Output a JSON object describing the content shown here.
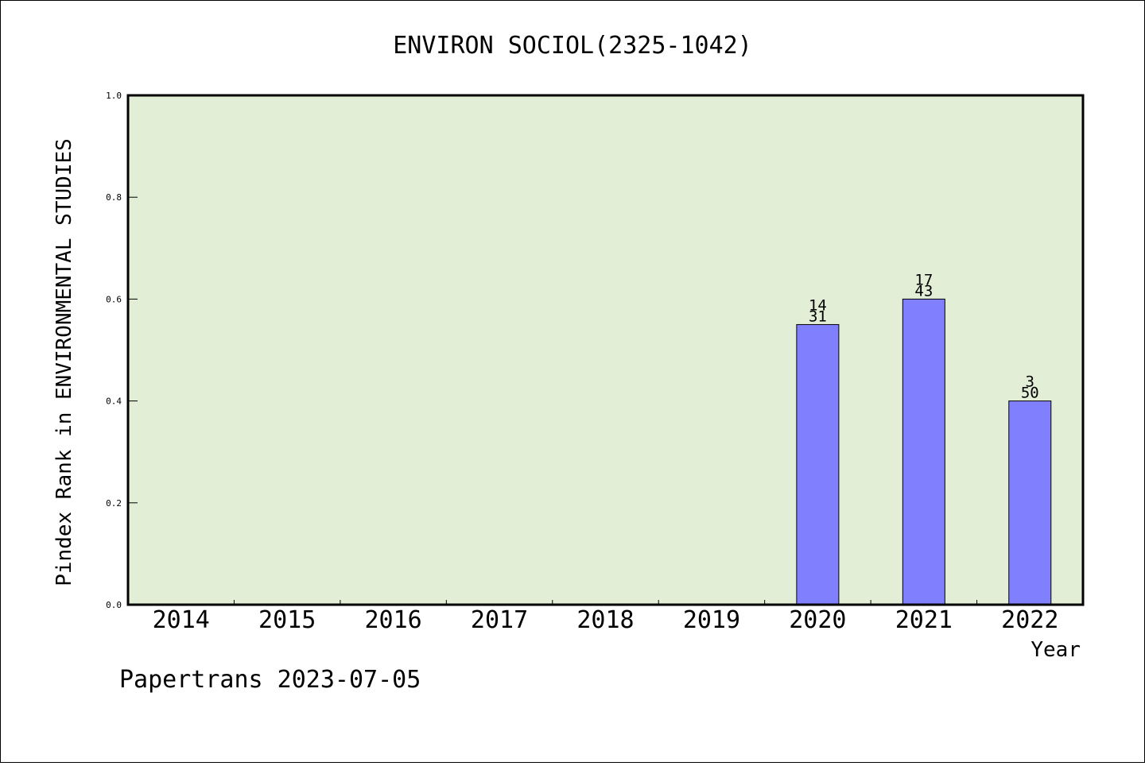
{
  "chart_data": {
    "type": "bar",
    "title": "ENVIRON SOCIOL(2325-1042)",
    "ylabel": "Pindex Rank in ENVIRONMENTAL STUDIES",
    "xlabel": "Year",
    "categories": [
      "2014",
      "2015",
      "2016",
      "2017",
      "2018",
      "2019",
      "2020",
      "2021",
      "2022"
    ],
    "values": [
      null,
      null,
      null,
      null,
      null,
      null,
      0.55,
      0.6,
      0.4
    ],
    "bar_labels": [
      null,
      null,
      null,
      null,
      null,
      null,
      [
        "14",
        "31"
      ],
      [
        "17",
        "43"
      ],
      [
        "3",
        "50"
      ]
    ],
    "ylim": [
      0,
      1.0
    ],
    "yticks": [
      "0.0",
      "0.2",
      "0.4",
      "0.6",
      "0.8",
      "1.0"
    ],
    "grid": false,
    "colors": {
      "plot_bg": "#e2efd6",
      "bar": "#8080ff",
      "bar_edge": "#000000"
    }
  },
  "footer": {
    "credit": "Papertrans 2023-07-05"
  }
}
